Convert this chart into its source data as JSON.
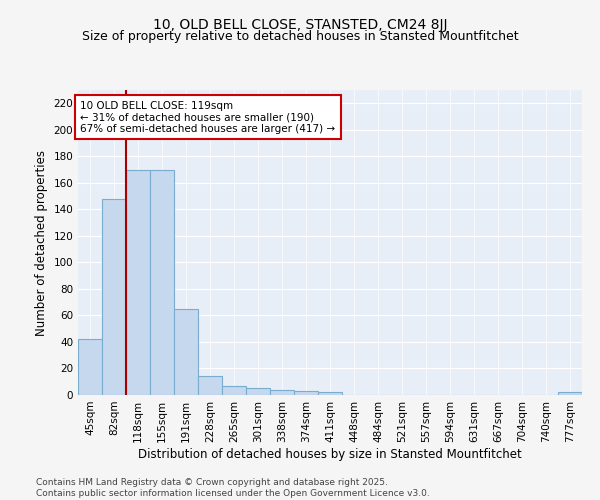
{
  "title": "10, OLD BELL CLOSE, STANSTED, CM24 8JJ",
  "subtitle": "Size of property relative to detached houses in Stansted Mountfitchet",
  "xlabel": "Distribution of detached houses by size in Stansted Mountfitchet",
  "ylabel": "Number of detached properties",
  "bar_values": [
    42,
    148,
    170,
    170,
    65,
    14,
    7,
    5,
    4,
    3,
    2,
    0,
    0,
    0,
    0,
    0,
    0,
    0,
    0,
    0,
    2
  ],
  "categories": [
    "45sqm",
    "82sqm",
    "118sqm",
    "155sqm",
    "191sqm",
    "228sqm",
    "265sqm",
    "301sqm",
    "338sqm",
    "374sqm",
    "411sqm",
    "448sqm",
    "484sqm",
    "521sqm",
    "557sqm",
    "594sqm",
    "631sqm",
    "667sqm",
    "704sqm",
    "740sqm",
    "777sqm"
  ],
  "bar_color": "#c5d8ee",
  "bar_edge_color": "#7aacce",
  "plot_bg_color": "#e8eef7",
  "fig_bg_color": "#f5f5f5",
  "grid_color": "#ffffff",
  "vline_x_index": 2.0,
  "vline_color": "#aa0000",
  "annotation_text": "10 OLD BELL CLOSE: 119sqm\n← 31% of detached houses are smaller (190)\n67% of semi-detached houses are larger (417) →",
  "annotation_box_color": "#ffffff",
  "annotation_box_edge": "#cc0000",
  "footer_text": "Contains HM Land Registry data © Crown copyright and database right 2025.\nContains public sector information licensed under the Open Government Licence v3.0.",
  "ylim": [
    0,
    230
  ],
  "yticks": [
    0,
    20,
    40,
    60,
    80,
    100,
    120,
    140,
    160,
    180,
    200,
    220
  ],
  "title_fontsize": 10,
  "subtitle_fontsize": 9,
  "xlabel_fontsize": 8.5,
  "ylabel_fontsize": 8.5,
  "tick_fontsize": 7.5,
  "annotation_fontsize": 7.5,
  "footer_fontsize": 6.5
}
